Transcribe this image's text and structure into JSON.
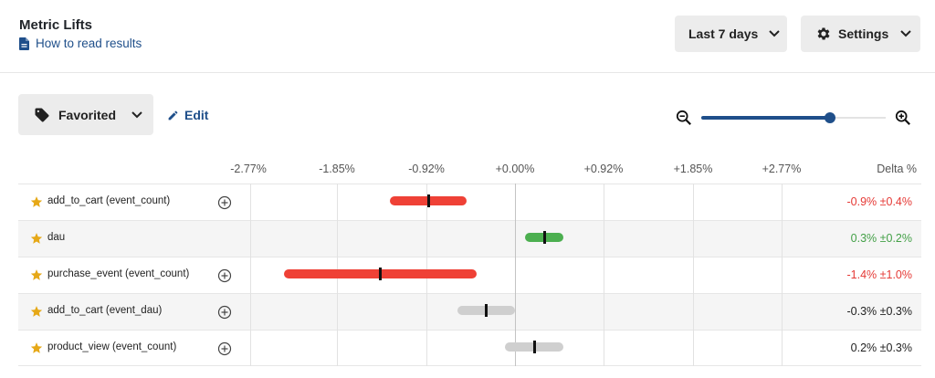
{
  "header": {
    "title": "Metric Lifts",
    "help_link": "How to read results",
    "range_button": "Last 7 days",
    "settings_button": "Settings"
  },
  "toolbar": {
    "tag_filter": "Favorited",
    "edit_label": "Edit",
    "zoom_level": 0.7
  },
  "axis": {
    "ticks": [
      "-2.77%",
      "-1.85%",
      "-0.92%",
      "+0.00%",
      "+0.92%",
      "+1.85%",
      "+2.77%"
    ],
    "tick_values": [
      -2.77,
      -1.85,
      -0.92,
      0.0,
      0.92,
      1.85,
      2.77
    ],
    "delta_header": "Delta %"
  },
  "colors": {
    "negative": "#ef4136",
    "positive": "#4caf50",
    "neutral": "#cfcfcf",
    "negative_text": "#e53935",
    "positive_text": "#43a047",
    "neutral_text": "#1f1f1f",
    "accent": "#1f4f8a",
    "star": "#e6a817"
  },
  "metrics": [
    {
      "name": "add_to_cart (event_count)",
      "delta_text": "-0.9% ±0.4%",
      "delta": -0.9,
      "ci": 0.4,
      "status": "negative",
      "has_add": true
    },
    {
      "name": "dau",
      "delta_text": "0.3% ±0.2%",
      "delta": 0.3,
      "ci": 0.2,
      "status": "positive",
      "has_add": false
    },
    {
      "name": "purchase_event (event_count)",
      "delta_text": "-1.4% ±1.0%",
      "delta": -1.4,
      "ci": 1.0,
      "status": "negative",
      "has_add": true
    },
    {
      "name": "add_to_cart (event_dau)",
      "delta_text": "-0.3% ±0.3%",
      "delta": -0.3,
      "ci": 0.3,
      "status": "neutral",
      "has_add": true
    },
    {
      "name": "product_view (event_count)",
      "delta_text": "0.2% ±0.3%",
      "delta": 0.2,
      "ci": 0.3,
      "status": "neutral",
      "has_add": true
    }
  ]
}
